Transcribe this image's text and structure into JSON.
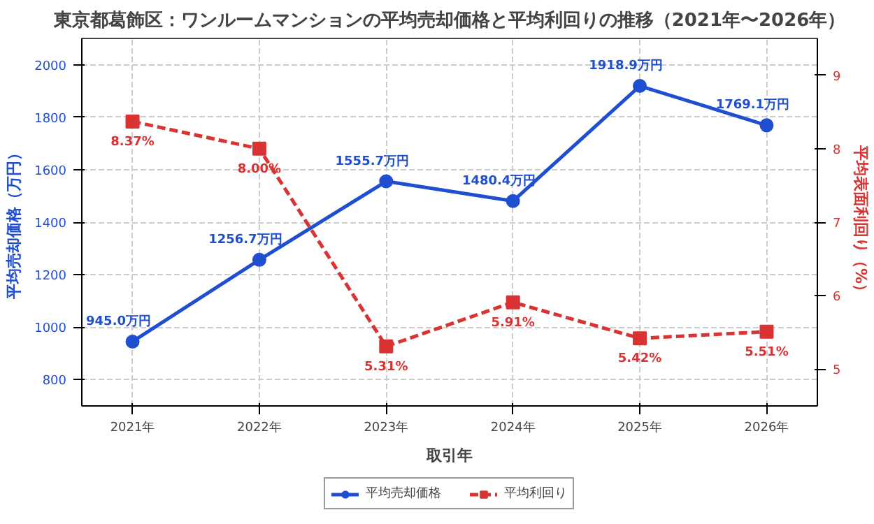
{
  "chart_data": {
    "type": "line",
    "title": "東京都葛飾区：ワンルームマンションの平均売却価格と平均利回りの推移（2021年〜2026年）",
    "xlabel": "取引年",
    "ylabel": "平均売却価格（万円）",
    "y2label": "平均表面利回り（%）",
    "categories": [
      "2021年",
      "2022年",
      "2023年",
      "2024年",
      "2025年",
      "2026年"
    ],
    "series": [
      {
        "name": "平均売却価格",
        "color": "#1f4fd0",
        "values": [
          945.0,
          1256.7,
          1555.7,
          1480.4,
          1918.9,
          1769.1
        ],
        "marker": "circle",
        "line_style": "solid",
        "value_labels": [
          "945.0万円",
          "1256.7万円",
          "1555.7万円",
          "1480.4万円",
          "1918.9万円",
          "1769.1万円"
        ]
      },
      {
        "name": "平均利回り",
        "color": "#d93333",
        "values": [
          8.37,
          8.0,
          5.31,
          5.91,
          5.42,
          5.51
        ],
        "axis": "y2",
        "marker": "square",
        "line_style": "dashed",
        "value_labels": [
          "8.37%",
          "8.00%",
          "5.31%",
          "5.91%",
          "5.42%",
          "5.51%"
        ]
      }
    ],
    "ylim": [
      700,
      2100
    ],
    "yticks": [
      800,
      1000,
      1200,
      1400,
      1600,
      1800,
      2000
    ],
    "y2lim": [
      4.5,
      9.5
    ],
    "y2ticks": [
      5,
      6,
      7,
      8,
      9
    ],
    "grid": true,
    "legend": "bottom"
  }
}
